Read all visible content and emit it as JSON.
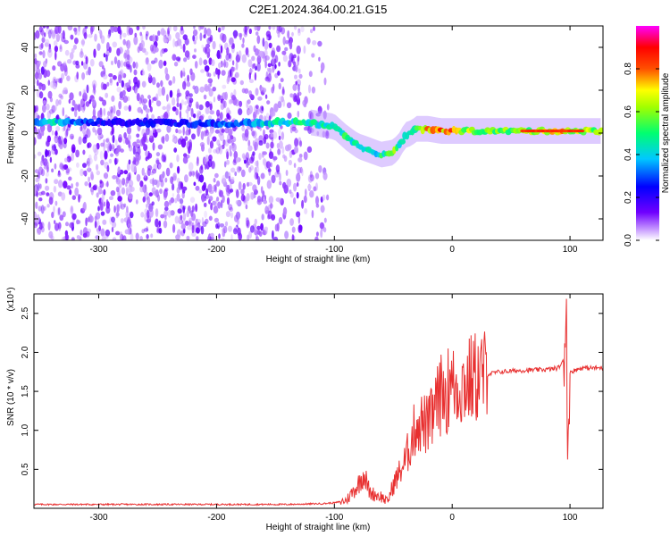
{
  "title": "C2E1.2024.364.00.21.G15",
  "chart_data": [
    {
      "type": "heatmap",
      "xlabel": "Height of straight line (km)",
      "ylabel": "Frequency (Hz)",
      "xlim": [
        -355,
        128
      ],
      "ylim": [
        -50,
        50
      ],
      "xticks": [
        -300,
        -200,
        -100,
        0,
        100
      ],
      "yticks": [
        -40,
        -20,
        0,
        20,
        40
      ],
      "grid": false,
      "colorbar": {
        "label": "Normalized spectral amplitude",
        "range": [
          0,
          1
        ],
        "ticks": [
          0.0,
          0.2,
          0.4,
          0.6,
          0.8
        ],
        "colormap": [
          "#ffffff",
          "#7000ff",
          "#0000ff",
          "#00c8ff",
          "#00ff70",
          "#ffff00",
          "#ff5000",
          "#ff0000",
          "#ff00ff"
        ]
      },
      "ridge": {
        "x": [
          -355,
          -340,
          -300,
          -250,
          -200,
          -150,
          -120,
          -100,
          -90,
          -80,
          -70,
          -60,
          -50,
          -45,
          -40,
          -35,
          -30,
          -20,
          -10,
          0,
          20,
          60,
          90,
          100,
          128
        ],
        "y": [
          5,
          5,
          5,
          5,
          4,
          5,
          5,
          3,
          -2,
          -6,
          -8,
          -10,
          -9,
          -6,
          -1,
          0,
          2,
          2,
          1,
          1,
          1,
          1,
          1,
          1,
          1
        ],
        "amplitude": [
          0.4,
          0.45,
          0.25,
          0.25,
          0.3,
          0.45,
          0.5,
          0.5,
          0.55,
          0.45,
          0.45,
          0.5,
          0.6,
          0.5,
          0.45,
          0.5,
          0.6,
          0.8,
          0.85,
          0.8,
          0.6,
          0.6,
          0.75,
          0.7,
          0.6
        ]
      },
      "noise_extent": [
        -355,
        -115
      ]
    },
    {
      "type": "line",
      "xlabel": "Height of straight line (km)",
      "ylabel": "SNR (10 * v/v)",
      "y_multiplier": "(x10⁴)",
      "xlim": [
        -355,
        128
      ],
      "ylim": [
        0,
        2.75
      ],
      "xticks": [
        -300,
        -200,
        -100,
        0,
        100
      ],
      "yticks": [
        0.5,
        1.0,
        1.5,
        2.0,
        2.5
      ],
      "grid": false,
      "color": "#e83030",
      "series": [
        {
          "x": [
            -355,
            -300,
            -200,
            -140,
            -110,
            -100,
            -90,
            -80,
            -75,
            -70,
            -60,
            -55,
            -50,
            -45,
            -40,
            -35,
            -30,
            -25,
            -20,
            -15,
            -10,
            -5,
            0,
            10,
            20,
            30,
            40,
            60,
            80,
            90,
            95,
            97,
            98,
            100,
            110,
            128
          ],
          "y": [
            0.05,
            0.05,
            0.05,
            0.05,
            0.06,
            0.07,
            0.1,
            0.3,
            0.45,
            0.2,
            0.15,
            0.08,
            0.3,
            0.45,
            0.6,
            0.85,
            1.1,
            1.1,
            1.05,
            1.25,
            1.45,
            1.5,
            1.55,
            1.6,
            1.68,
            1.72,
            1.75,
            1.77,
            1.78,
            1.8,
            1.9,
            2.6,
            0.6,
            1.75,
            1.8,
            1.8
          ]
        }
      ]
    }
  ]
}
